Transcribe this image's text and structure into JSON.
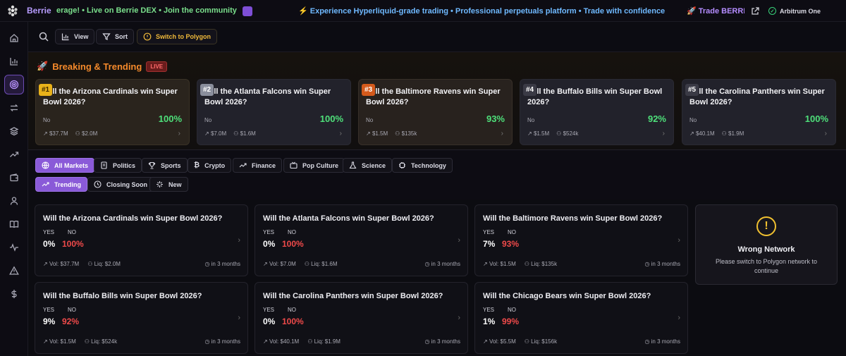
{
  "topbar": {
    "brand": "Berrie",
    "ticker_left": "erage! • Live on Berrie DEX • Join the community",
    "ticker_center": "⚡ Experience Hyperliquid-grade trading • Professional perpetuals platform • Trade with confidence",
    "ticker_right": "🚀 Trade BERRIE",
    "network": "Arbitrum One"
  },
  "toolbar": {
    "view": "View",
    "sort": "Sort",
    "switch": "Switch to Polygon"
  },
  "trending": {
    "title": "Breaking & Trending",
    "live": "LIVE",
    "cards": [
      {
        "rank": "#1",
        "question": "Will the Arizona Cardinals win Super Bowl 2026?",
        "outcome": "No",
        "pct": "100%",
        "vol": "$37.7M",
        "users": "$2.0M"
      },
      {
        "rank": "#2",
        "question": "Will the Atlanta Falcons win Super Bowl 2026?",
        "outcome": "No",
        "pct": "100%",
        "vol": "$7.0M",
        "users": "$1.6M"
      },
      {
        "rank": "#3",
        "question": "Will the Baltimore Ravens win Super Bowl 2026?",
        "outcome": "No",
        "pct": "93%",
        "vol": "$1.5M",
        "users": "$135k"
      },
      {
        "rank": "#4",
        "question": "Will the Buffalo Bills win Super Bowl 2026?",
        "outcome": "No",
        "pct": "92%",
        "vol": "$1.5M",
        "users": "$524k"
      },
      {
        "rank": "#5",
        "question": "Will the Carolina Panthers win Super Bowl 2026?",
        "outcome": "No",
        "pct": "100%",
        "vol": "$40.1M",
        "users": "$1.9M"
      }
    ]
  },
  "categories": [
    "All Markets",
    "Politics",
    "Sports",
    "Crypto",
    "Finance",
    "Pop Culture",
    "Science",
    "Technology"
  ],
  "sorts": [
    "Trending",
    "Closing Soon",
    "New"
  ],
  "markets": {
    "yes_label": "YES",
    "no_label": "NO",
    "items": [
      {
        "question": "Will the Arizona Cardinals win Super Bowl 2026?",
        "yes": "0%",
        "no": "100%",
        "vol": "Vol: $37.7M",
        "liq": "Liq: $2.0M",
        "time": "in 3 months"
      },
      {
        "question": "Will the Atlanta Falcons win Super Bowl 2026?",
        "yes": "0%",
        "no": "100%",
        "vol": "Vol: $7.0M",
        "liq": "Liq: $1.6M",
        "time": "in 3 months"
      },
      {
        "question": "Will the Baltimore Ravens win Super Bowl 2026?",
        "yes": "7%",
        "no": "93%",
        "vol": "Vol: $1.5M",
        "liq": "Liq: $135k",
        "time": "in 3 months"
      },
      {
        "question": "Will the Buffalo Bills win Super Bowl 2026?",
        "yes": "9%",
        "no": "92%",
        "vol": "Vol: $1.5M",
        "liq": "Liq: $524k",
        "time": "in 3 months"
      },
      {
        "question": "Will the Carolina Panthers win Super Bowl 2026?",
        "yes": "0%",
        "no": "100%",
        "vol": "Vol: $40.1M",
        "liq": "Liq: $1.9M",
        "time": "in 3 months"
      },
      {
        "question": "Will the Chicago Bears win Super Bowl 2026?",
        "yes": "1%",
        "no": "99%",
        "vol": "Vol: $5.5M",
        "liq": "Liq: $156k",
        "time": "in 3 months"
      }
    ]
  },
  "wrong_network": {
    "title": "Wrong Network",
    "message": "Please switch to Polygon network to continue"
  },
  "colors": {
    "accent": "#8a5ad8",
    "yes_green": "#4ee07a",
    "no_red": "#f04a4a",
    "warning": "#f0c030"
  }
}
